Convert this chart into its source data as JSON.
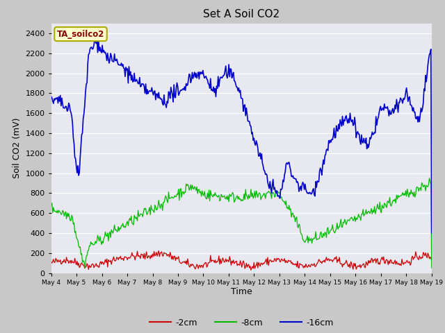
{
  "title": "Set A Soil CO2",
  "xlabel": "Time",
  "ylabel": "Soil CO2 (mV)",
  "ylim": [
    0,
    2500
  ],
  "fig_bg_color": "#c8c8c8",
  "plot_bg_color": "#e8e8f0",
  "legend_label": "TA_soilco2",
  "series_labels": [
    "-2cm",
    "-8cm",
    "-16cm"
  ],
  "series_colors": [
    "#cc0000",
    "#00bb00",
    "#0000cc"
  ],
  "x_tick_labels": [
    "May 4",
    "May 5",
    "May 6",
    "May 7",
    "May 8",
    "May 9",
    "May 10",
    "May 11",
    "May 12",
    "May 13",
    "May 14",
    "May 15",
    "May 16",
    "May 17",
    "May 18",
    "May 19"
  ],
  "yticks": [
    0,
    200,
    400,
    600,
    800,
    1000,
    1200,
    1400,
    1600,
    1800,
    2000,
    2200,
    2400
  ],
  "n_points": 500,
  "seed": 42
}
